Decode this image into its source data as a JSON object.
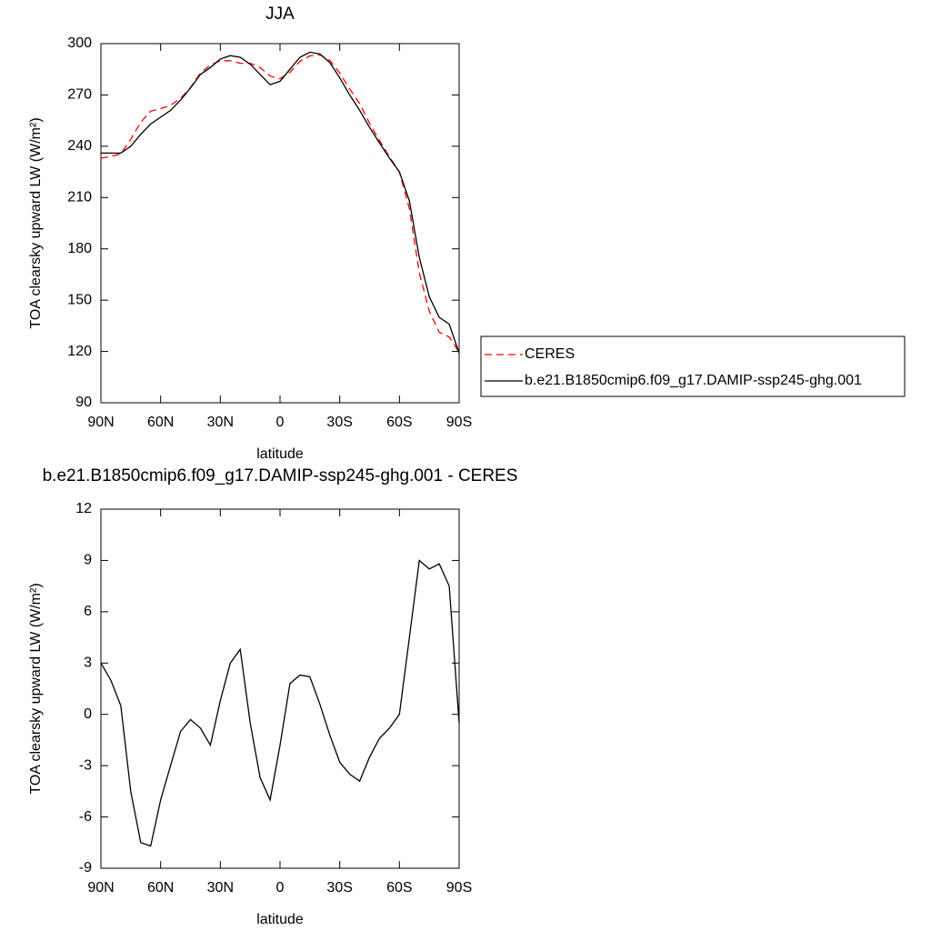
{
  "chart_data": [
    {
      "type": "line",
      "title": "JJA",
      "xlabel": "latitude",
      "ylabel": "TOA clearsky upward LW (W/m²)",
      "x": [
        90,
        85,
        80,
        75,
        70,
        65,
        60,
        55,
        50,
        45,
        40,
        35,
        30,
        25,
        20,
        15,
        10,
        5,
        0,
        -5,
        -10,
        -15,
        -20,
        -25,
        -30,
        -35,
        -40,
        -45,
        -50,
        -55,
        -60,
        -65,
        -70,
        -75,
        -80,
        -85,
        -90
      ],
      "xlim": [
        90,
        -90
      ],
      "xticks": [
        {
          "value": 90,
          "label": "90N"
        },
        {
          "value": 60,
          "label": "60N"
        },
        {
          "value": 30,
          "label": "30N"
        },
        0,
        {
          "value": -30,
          "label": "30S"
        },
        {
          "value": -60,
          "label": "60S"
        },
        {
          "value": -90,
          "label": "90S"
        }
      ],
      "ylim": [
        90,
        300
      ],
      "yticks": [
        90,
        120,
        150,
        180,
        210,
        240,
        270,
        300
      ],
      "legend": "right",
      "series": [
        {
          "name": "CERES",
          "color": "#ff0000",
          "style": "dashed",
          "values": [
            233,
            234,
            235.5,
            244,
            254,
            260.5,
            262,
            264,
            268,
            274.3,
            282.8,
            287.5,
            290,
            290,
            288.5,
            288.5,
            286,
            281,
            279.5,
            283.2,
            289.7,
            292.8,
            293.5,
            290.2,
            282.8,
            273.5,
            264.9,
            253.5,
            243.4,
            233.8,
            225,
            203.5,
            166,
            143.5,
            131.2,
            128.5,
            119.5
          ]
        },
        {
          "name": "b.e21.B1850cmip6.f09_g17.DAMIP-ssp245-ghg.001",
          "color": "#000000",
          "style": "solid",
          "values": [
            236,
            236,
            236,
            240,
            247,
            253,
            257,
            261,
            267,
            274,
            282,
            286,
            291,
            293,
            292,
            288,
            282,
            276,
            278,
            285,
            292,
            295,
            294,
            289,
            280,
            270,
            261,
            251,
            242,
            233,
            225,
            208,
            175,
            152,
            140,
            136,
            119
          ]
        }
      ]
    },
    {
      "type": "line",
      "title": "b.e21.B1850cmip6.f09_g17.DAMIP-ssp245-ghg.001 - CERES",
      "xlabel": "latitude",
      "ylabel": "TOA clearsky upward LW (W/m²)",
      "x": [
        90,
        85,
        80,
        75,
        70,
        65,
        60,
        55,
        50,
        45,
        40,
        35,
        30,
        25,
        20,
        15,
        10,
        5,
        0,
        -5,
        -10,
        -15,
        -20,
        -25,
        -30,
        -35,
        -40,
        -45,
        -50,
        -55,
        -60,
        -65,
        -70,
        -75,
        -80,
        -85,
        -90
      ],
      "xlim": [
        90,
        -90
      ],
      "xticks": [
        {
          "value": 90,
          "label": "90N"
        },
        {
          "value": 60,
          "label": "60N"
        },
        {
          "value": 30,
          "label": "30N"
        },
        0,
        {
          "value": -30,
          "label": "30S"
        },
        {
          "value": -60,
          "label": "60S"
        },
        {
          "value": -90,
          "label": "90S"
        }
      ],
      "ylim": [
        -9,
        12
      ],
      "yticks": [
        -9,
        -6,
        -3,
        0,
        3,
        6,
        9,
        12
      ],
      "series": [
        {
          "color": "#000000",
          "style": "solid",
          "values": [
            3,
            2,
            0.5,
            -4.5,
            -7.5,
            -7.7,
            -5,
            -3,
            -1,
            -0.3,
            -0.8,
            -1.8,
            0.8,
            3,
            3.8,
            -0.5,
            -3.7,
            -5,
            -1.8,
            1.8,
            2.3,
            2.2,
            0.6,
            -1.2,
            -2.8,
            -3.5,
            -3.9,
            -2.5,
            -1.4,
            -0.8,
            0,
            4.5,
            9,
            8.5,
            8.8,
            7.5,
            -0.5
          ]
        }
      ]
    }
  ]
}
